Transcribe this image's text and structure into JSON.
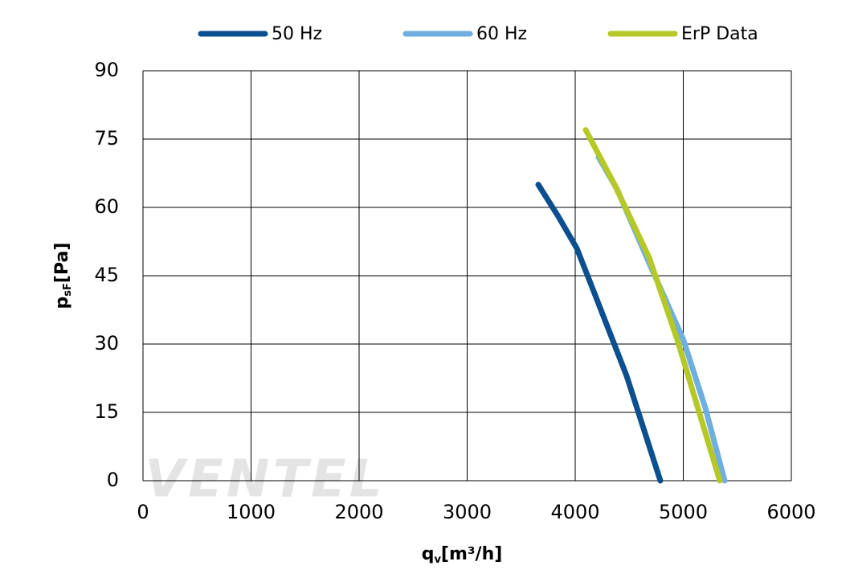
{
  "chart_data": {
    "type": "line",
    "x_label": "q",
    "x_label_sub": "v",
    "x_label_unit": "[m³/h]",
    "y_label": "p",
    "y_label_sub": "sF",
    "y_label_unit": "[Pa]",
    "watermark": "VENTEL",
    "xlim": [
      0,
      6000
    ],
    "xticks": [
      0,
      1000,
      2000,
      3000,
      4000,
      5000,
      6000
    ],
    "ylim": [
      0,
      90
    ],
    "yticks": [
      0,
      15,
      30,
      45,
      60,
      75,
      90
    ],
    "grid": true,
    "legend": "top",
    "series": [
      {
        "name": "50 Hz",
        "color": "#0b4f8f",
        "x": [
          3658,
          3844,
          4015,
          4164,
          4476,
          4788
        ],
        "values": [
          65,
          58,
          51,
          42,
          23,
          0
        ]
      },
      {
        "name": "60 Hz",
        "color": "#6eaee0",
        "x": [
          4216,
          4387,
          4699,
          5000,
          5204,
          5383
        ],
        "values": [
          71,
          64,
          47,
          31,
          16,
          0
        ]
      },
      {
        "name": "ErP Data",
        "color": "#b5c827",
        "x": [
          4097,
          4364,
          4684,
          4944,
          5338
        ],
        "values": [
          77,
          65,
          49,
          31,
          0
        ]
      }
    ]
  }
}
